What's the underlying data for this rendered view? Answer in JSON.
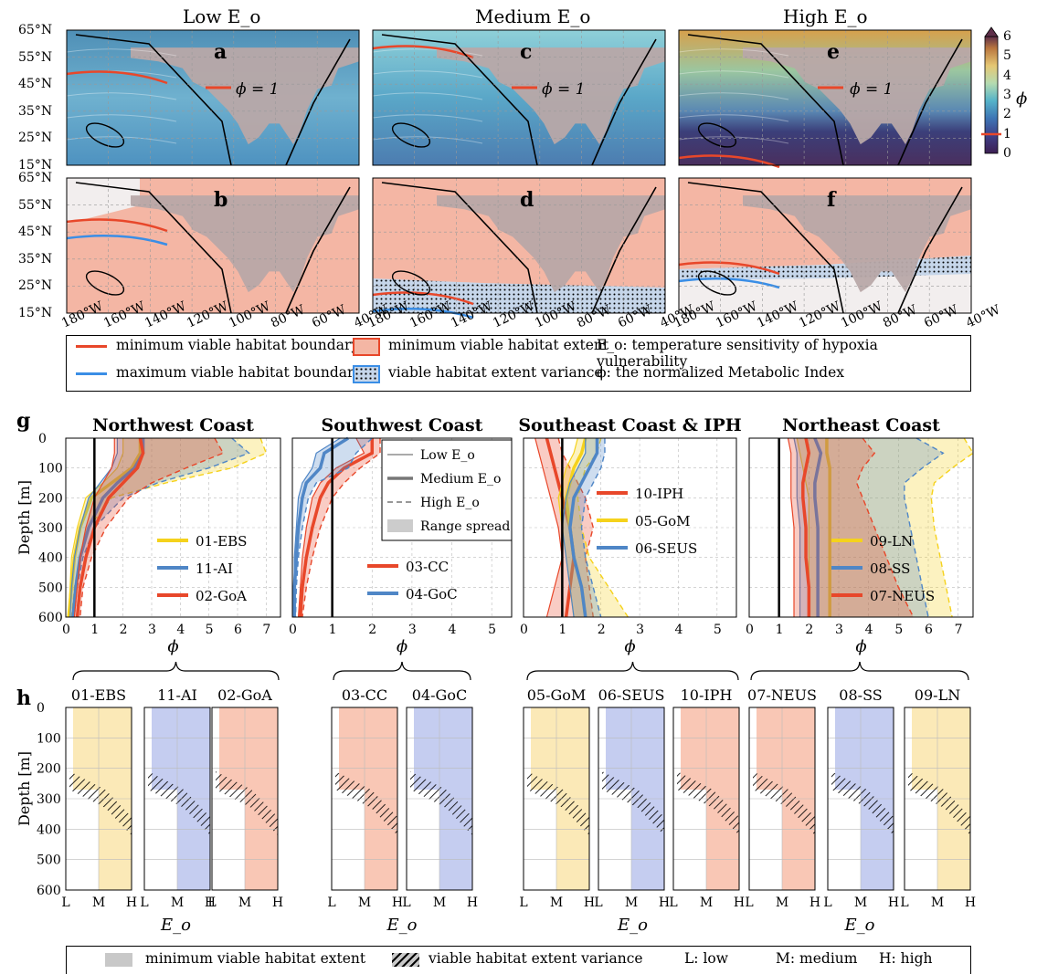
{
  "maps": {
    "column_titles": [
      "Low E_o",
      "Medium E_o",
      "High E_o"
    ],
    "panel_letters": [
      "a",
      "c",
      "e",
      "b",
      "d",
      "f"
    ],
    "phi_label": "ϕ = 1",
    "lat_ticks": [
      "65°N",
      "55°N",
      "45°N",
      "35°N",
      "25°N",
      "15°N"
    ],
    "lon_ticks": [
      "180°W",
      "160°W",
      "140°W",
      "120°W",
      "100°W",
      "80°W",
      "60°W",
      "40°W"
    ],
    "colorbar": {
      "ticks": [
        "6",
        "5",
        "4",
        "3",
        "2",
        "1",
        "0"
      ],
      "label": "ϕ"
    }
  },
  "legend_top": {
    "items": [
      "minimum viable habitat boundary",
      "maximum viable habitat boundary",
      "minimum viable habitat extent",
      "viable habitat extent variance",
      "E_o: temperature sensitivity of hypoxia vulnerability",
      "ϕ: the normalized Metabolic Index"
    ],
    "colors": {
      "min_boundary": "#e8472a",
      "max_boundary": "#3a8ee6",
      "extent_fill": "#f4b6a4",
      "variance_fill": "#c6d6ea"
    }
  },
  "section_letters": {
    "g": "g",
    "h": "h"
  },
  "chart_data": [
    {
      "type": "line",
      "title": "Northwest Coast",
      "xlabel": "ϕ",
      "ylabel": "Depth [m]",
      "xlim": [
        0,
        7.5
      ],
      "ylim": [
        600,
        0
      ],
      "xticks": [
        "0",
        "1",
        "2",
        "3",
        "4",
        "5",
        "6",
        "7"
      ],
      "yticks": [
        "0",
        "100",
        "200",
        "300",
        "400",
        "500",
        "600"
      ],
      "depth": [
        0,
        50,
        100,
        150,
        200,
        300,
        400,
        500,
        600
      ],
      "series": [
        {
          "name": "01-EBS",
          "color": "#f5d21c",
          "medium": [
            2.6,
            2.6,
            2.3,
            1.6,
            0.9,
            0.5,
            0.3,
            0.2,
            0.1
          ],
          "low": [
            2.0,
            2.0,
            1.8,
            1.3,
            0.7,
            0.4,
            0.2,
            0.15,
            0.1
          ],
          "high": [
            6.8,
            7.0,
            5.8,
            3.5,
            1.6,
            0.8,
            0.5,
            0.3,
            0.2
          ]
        },
        {
          "name": "11-AI",
          "color": "#4f86c6",
          "medium": [
            2.7,
            2.7,
            2.4,
            1.8,
            1.3,
            0.8,
            0.5,
            0.35,
            0.25
          ],
          "low": [
            1.8,
            1.8,
            1.6,
            1.2,
            0.8,
            0.5,
            0.3,
            0.2,
            0.15
          ],
          "high": [
            5.8,
            6.4,
            5.0,
            3.2,
            2.0,
            1.0,
            0.6,
            0.4,
            0.3
          ]
        },
        {
          "name": "02-GoA",
          "color": "#e8472a",
          "medium": [
            2.6,
            2.7,
            2.5,
            2.0,
            1.5,
            1.0,
            0.7,
            0.5,
            0.4
          ],
          "low": [
            1.7,
            1.7,
            1.6,
            1.3,
            1.0,
            0.7,
            0.5,
            0.4,
            0.3
          ],
          "high": [
            5.2,
            5.5,
            4.2,
            3.0,
            2.2,
            1.4,
            0.9,
            0.6,
            0.5
          ]
        }
      ]
    },
    {
      "type": "line",
      "title": "Southwest Coast",
      "xlabel": "ϕ",
      "xlim": [
        0,
        5.5
      ],
      "ylim": [
        600,
        0
      ],
      "xticks": [
        "0",
        "1",
        "2",
        "3",
        "4",
        "5"
      ],
      "depth": [
        0,
        50,
        100,
        150,
        200,
        300,
        400,
        500,
        600
      ],
      "series": [
        {
          "name": "03-CC",
          "color": "#e8472a",
          "medium": [
            2.0,
            2.0,
            1.3,
            0.9,
            0.7,
            0.5,
            0.35,
            0.25,
            0.2
          ],
          "low": [
            1.6,
            1.8,
            1.1,
            0.7,
            0.5,
            0.35,
            0.25,
            0.2,
            0.15
          ],
          "high": [
            2.2,
            2.2,
            1.7,
            1.3,
            1.0,
            0.7,
            0.5,
            0.35,
            0.25
          ]
        },
        {
          "name": "04-GoC",
          "color": "#4f86c6",
          "medium": [
            1.4,
            0.8,
            0.7,
            0.35,
            0.25,
            0.15,
            0.1,
            0.05,
            0.05
          ],
          "low": [
            1.2,
            0.6,
            0.5,
            0.25,
            0.15,
            0.1,
            0.05,
            0.05,
            0.03
          ],
          "high": [
            2.0,
            1.6,
            1.4,
            0.6,
            0.4,
            0.25,
            0.15,
            0.1,
            0.08
          ]
        }
      ],
      "legend_styles": [
        "Low E_o",
        "Medium E_o",
        "High E_o",
        "Range spread"
      ]
    },
    {
      "type": "line",
      "title": "Southeast Coast & IPH",
      "xlabel": "ϕ",
      "xlim": [
        0,
        5.5
      ],
      "ylim": [
        600,
        0
      ],
      "xticks": [
        "0",
        "1",
        "2",
        "3",
        "4",
        "5"
      ],
      "depth": [
        0,
        50,
        100,
        150,
        200,
        300,
        400,
        500,
        600
      ],
      "series": [
        {
          "name": "10-IPH",
          "color": "#e8472a",
          "medium": [
            0.6,
            0.7,
            0.8,
            0.9,
            1.0,
            1.2,
            1.3,
            1.2,
            1.1
          ],
          "low": [
            0.3,
            0.4,
            0.5,
            0.6,
            0.7,
            0.9,
            1.0,
            0.8,
            0.6
          ],
          "high": [
            0.9,
            1.0,
            1.2,
            1.4,
            1.6,
            1.8,
            1.6,
            1.7,
            1.8
          ]
        },
        {
          "name": "05-GoM",
          "color": "#f5d21c",
          "medium": [
            1.6,
            1.5,
            1.3,
            1.2,
            1.1,
            1.2,
            1.3,
            1.5,
            1.6
          ],
          "low": [
            1.4,
            1.3,
            1.1,
            1.0,
            0.9,
            1.0,
            1.1,
            1.2,
            1.3
          ],
          "high": [
            2.0,
            1.9,
            1.6,
            1.5,
            1.4,
            1.5,
            1.7,
            2.2,
            2.7
          ]
        },
        {
          "name": "06-SEUS",
          "color": "#4f86c6",
          "medium": [
            1.9,
            1.9,
            1.7,
            1.5,
            1.3,
            1.2,
            1.3,
            1.5,
            1.6
          ],
          "low": [
            1.6,
            1.6,
            1.4,
            1.2,
            1.1,
            1.0,
            1.1,
            1.2,
            1.3
          ],
          "high": [
            2.1,
            2.1,
            2.0,
            1.8,
            1.6,
            1.5,
            1.6,
            1.8,
            2.0
          ]
        }
      ]
    },
    {
      "type": "line",
      "title": "Northeast Coast",
      "xlabel": "ϕ",
      "xlim": [
        0,
        7.5
      ],
      "ylim": [
        600,
        0
      ],
      "xticks": [
        "0",
        "1",
        "2",
        "3",
        "4",
        "5",
        "6",
        "7"
      ],
      "depth": [
        0,
        50,
        100,
        150,
        200,
        300,
        400,
        500,
        600
      ],
      "series": [
        {
          "name": "09-LN",
          "color": "#f5d21c",
          "medium": [
            2.6,
            2.6,
            2.7,
            2.7,
            2.7,
            2.7,
            2.7,
            2.7,
            2.7
          ],
          "low": [
            1.6,
            1.7,
            1.8,
            1.9,
            2.0,
            2.0,
            2.0,
            2.0,
            2.0
          ],
          "high": [
            7.2,
            7.5,
            6.8,
            6.2,
            6.1,
            6.2,
            6.4,
            6.6,
            6.8
          ]
        },
        {
          "name": "08-SS",
          "color": "#4f86c6",
          "medium": [
            2.2,
            2.4,
            2.3,
            2.2,
            2.2,
            2.3,
            2.3,
            2.3,
            2.3
          ],
          "low": [
            1.5,
            1.6,
            1.6,
            1.6,
            1.6,
            1.7,
            1.7,
            1.7,
            1.7
          ],
          "high": [
            5.6,
            6.5,
            5.8,
            5.2,
            5.2,
            5.4,
            5.6,
            5.8,
            6.0
          ]
        },
        {
          "name": "07-NEUS",
          "color": "#e8472a",
          "medium": [
            1.9,
            2.0,
            1.9,
            1.8,
            1.8,
            1.9,
            1.9,
            2.0,
            2.0
          ],
          "low": [
            1.3,
            1.4,
            1.4,
            1.4,
            1.4,
            1.5,
            1.5,
            1.5,
            1.5
          ],
          "high": [
            3.8,
            4.2,
            3.8,
            3.6,
            3.8,
            4.2,
            4.6,
            5.0,
            5.5
          ]
        }
      ]
    }
  ],
  "section_h": {
    "groups": [
      {
        "panels": [
          "01-EBS",
          "11-AI",
          "02-GoA"
        ]
      },
      {
        "panels": [
          "03-CC",
          "04-GoC"
        ]
      },
      {
        "panels": [
          "05-GoM",
          "06-SEUS",
          "10-IPH"
        ]
      },
      {
        "panels": [
          "07-NEUS",
          "08-SS",
          "09-LN"
        ]
      }
    ],
    "ylabel": "Depth [m]",
    "xticks": [
      "L",
      "M",
      "H"
    ],
    "yticks": [
      "0",
      "100",
      "200",
      "300",
      "400",
      "500",
      "600"
    ],
    "xlabel": "E_o",
    "legend": [
      "minimum viable habitat extent",
      "viable habitat extent variance",
      "L: low",
      "M: medium",
      "H: high"
    ]
  }
}
